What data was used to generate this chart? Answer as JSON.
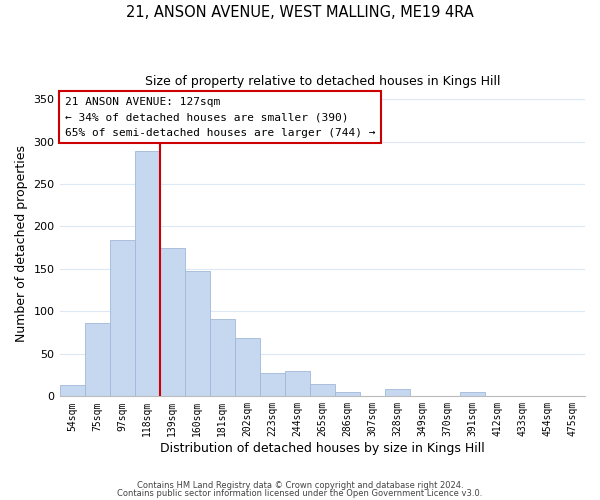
{
  "title": "21, ANSON AVENUE, WEST MALLING, ME19 4RA",
  "subtitle": "Size of property relative to detached houses in Kings Hill",
  "xlabel": "Distribution of detached houses by size in Kings Hill",
  "ylabel": "Number of detached properties",
  "bar_labels": [
    "54sqm",
    "75sqm",
    "97sqm",
    "118sqm",
    "139sqm",
    "160sqm",
    "181sqm",
    "202sqm",
    "223sqm",
    "244sqm",
    "265sqm",
    "286sqm",
    "307sqm",
    "328sqm",
    "349sqm",
    "370sqm",
    "391sqm",
    "412sqm",
    "433sqm",
    "454sqm",
    "475sqm"
  ],
  "bar_values": [
    13,
    86,
    184,
    289,
    175,
    148,
    91,
    69,
    27,
    30,
    15,
    5,
    0,
    9,
    0,
    0,
    5,
    0,
    0,
    0,
    0
  ],
  "bar_color": "#c5d8f0",
  "bar_edge_color": "#a0b8d8",
  "vline_x": 3.5,
  "vline_color": "#cc0000",
  "annotation_title": "21 ANSON AVENUE: 127sqm",
  "annotation_line1": "← 34% of detached houses are smaller (390)",
  "annotation_line2": "65% of semi-detached houses are larger (744) →",
  "annotation_box_color": "#ffffff",
  "annotation_box_edge": "#cc0000",
  "ylim": [
    0,
    360
  ],
  "yticks": [
    0,
    50,
    100,
    150,
    200,
    250,
    300,
    350
  ],
  "footer1": "Contains HM Land Registry data © Crown copyright and database right 2024.",
  "footer2": "Contains public sector information licensed under the Open Government Licence v3.0.",
  "bg_color": "#ffffff",
  "grid_color": "#dce8f5"
}
